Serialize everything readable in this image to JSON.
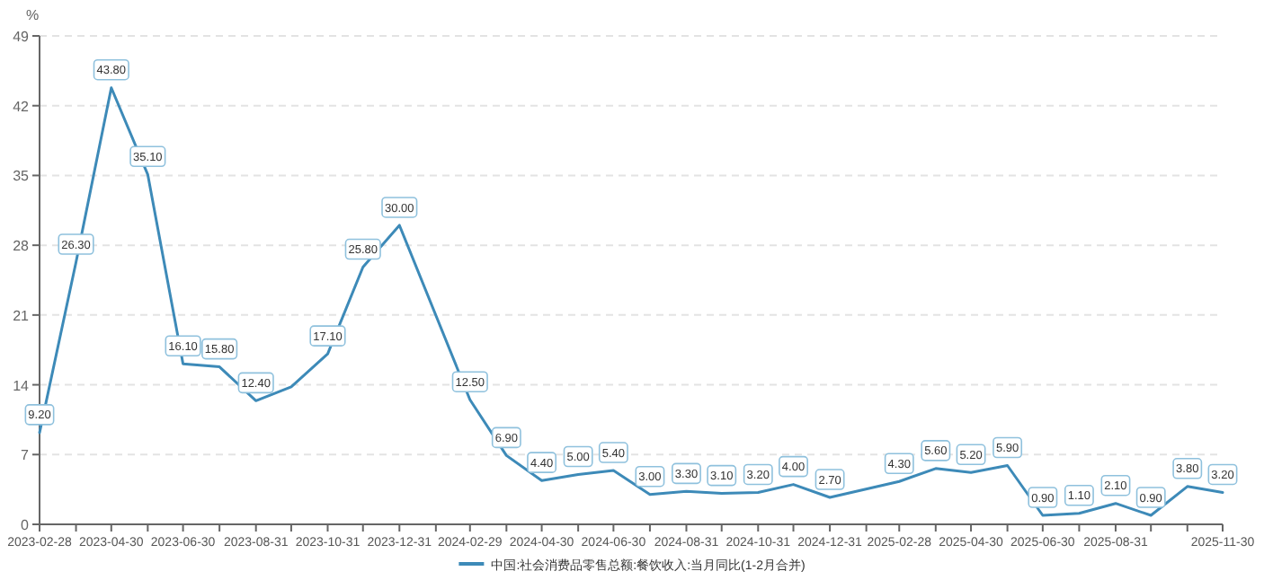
{
  "chart_data": {
    "type": "line",
    "ylabel": "%",
    "x": [
      "2023-02-28",
      "2023-03-31",
      "2023-04-30",
      "2023-05-31",
      "2023-06-30",
      "2023-07-31",
      "2023-08-31",
      "2023-09-30",
      "2023-10-31",
      "2023-11-30",
      "2023-12-31",
      "2024-02-29",
      "2024-03-31",
      "2024-04-30",
      "2024-05-31",
      "2024-06-30",
      "2024-07-31",
      "2024-08-31",
      "2024-09-30",
      "2024-10-31",
      "2024-11-30",
      "2024-12-31",
      "2025-02-28",
      "2025-03-31",
      "2025-04-30",
      "2025-05-31",
      "2025-06-30",
      "2025-07-31",
      "2025-08-31",
      "2025-09-30",
      "2025-10-31",
      "2025-11-30"
    ],
    "series": [
      {
        "name": "中国:社会消费品零售总额:餐饮收入:当月同比(1-2月合并)",
        "color": "#3d8ab8",
        "values": [
          9.2,
          26.3,
          43.8,
          35.1,
          16.1,
          15.8,
          12.4,
          13.8,
          17.1,
          25.8,
          30.0,
          12.5,
          6.9,
          4.4,
          5.0,
          5.4,
          3.0,
          3.3,
          3.1,
          3.2,
          4.0,
          2.7,
          4.3,
          5.6,
          5.2,
          5.9,
          0.9,
          1.1,
          2.1,
          0.9,
          3.8,
          3.2
        ],
        "value_labels": [
          "9.20",
          "26.30",
          "43.80",
          "35.10",
          "16.10",
          "15.80",
          "12.40",
          null,
          "17.10",
          "25.80",
          "30.00",
          "12.50",
          "6.90",
          "4.40",
          "5.00",
          "5.40",
          "3.00",
          "3.30",
          "3.10",
          "3.20",
          "4.00",
          "2.70",
          "4.30",
          "5.60",
          "5.20",
          "5.90",
          "0.90",
          "1.10",
          "2.10",
          "0.90",
          "3.80",
          "3.20"
        ]
      }
    ],
    "xlim": [
      "2023-02-28",
      "2025-11-30"
    ],
    "xticks": [
      "2023-02-28",
      {
        "value": "2023-03-31",
        "label": null
      },
      "2023-04-30",
      {
        "value": "2023-05-31",
        "label": null
      },
      "2023-06-30",
      {
        "value": "2023-07-31",
        "label": null
      },
      "2023-08-31",
      {
        "value": "2023-09-30",
        "label": null
      },
      "2023-10-31",
      {
        "value": "2023-11-30",
        "label": null
      },
      "2023-12-31",
      {
        "value": "2024-01-31",
        "label": null
      },
      "2024-02-29",
      {
        "value": "2024-03-31",
        "label": null
      },
      "2024-04-30",
      {
        "value": "2024-05-31",
        "label": null
      },
      "2024-06-30",
      {
        "value": "2024-07-31",
        "label": null
      },
      "2024-08-31",
      {
        "value": "2024-09-30",
        "label": null
      },
      "2024-10-31",
      {
        "value": "2024-11-30",
        "label": null
      },
      "2024-12-31",
      {
        "value": "2025-01-31",
        "label": null
      },
      "2025-02-28",
      {
        "value": "2025-03-31",
        "label": null
      },
      "2025-04-30",
      {
        "value": "2025-05-31",
        "label": null
      },
      "2025-06-30",
      {
        "value": "2025-07-31",
        "label": null
      },
      "2025-08-31",
      {
        "value": "2025-09-30",
        "label": null
      },
      {
        "value": "2025-10-31",
        "label": null
      },
      "2025-11-30"
    ],
    "ylim": [
      0,
      49
    ],
    "yticks": [
      0,
      7,
      14,
      21,
      28,
      35,
      42,
      49
    ],
    "grid": "y",
    "legend": "bottom"
  }
}
